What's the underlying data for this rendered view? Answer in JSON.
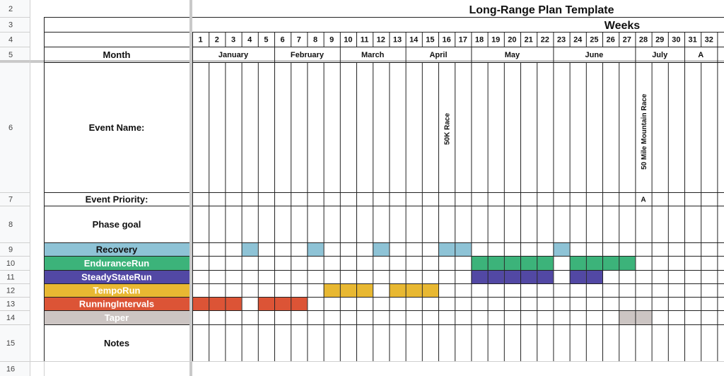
{
  "sheet": {
    "title": "Long-Range Plan Template",
    "weeks_label": "Weeks",
    "row_numbers": [
      "2",
      "3",
      "4",
      "5",
      "6",
      "7",
      "8",
      "9",
      "10",
      "11",
      "12",
      "13",
      "14",
      "15",
      "16"
    ],
    "labels": {
      "month": "Month",
      "event_name": "Event Name:",
      "event_priority": "Event Priority:",
      "phase_goal": "Phase goal",
      "notes": "Notes"
    },
    "weeks": [
      "1",
      "2",
      "3",
      "4",
      "5",
      "6",
      "7",
      "8",
      "9",
      "10",
      "11",
      "12",
      "13",
      "14",
      "15",
      "16",
      "17",
      "18",
      "19",
      "20",
      "21",
      "22",
      "23",
      "24",
      "25",
      "26",
      "27",
      "28",
      "29",
      "30",
      "31",
      "32"
    ],
    "months": [
      {
        "name": "January",
        "start_week": 1,
        "end_week": 5
      },
      {
        "name": "February",
        "start_week": 6,
        "end_week": 9
      },
      {
        "name": "March",
        "start_week": 10,
        "end_week": 13
      },
      {
        "name": "April",
        "start_week": 14,
        "end_week": 17
      },
      {
        "name": "May",
        "start_week": 18,
        "end_week": 22
      },
      {
        "name": "June",
        "start_week": 23,
        "end_week": 27
      },
      {
        "name": "July",
        "start_week": 28,
        "end_week": 30
      },
      {
        "name": "A",
        "start_week": 31,
        "end_week": 32
      }
    ],
    "events": [
      {
        "name": "50K Race",
        "week": 16
      },
      {
        "name": "50 Mile Mountain Race",
        "week": 28
      }
    ],
    "priorities": [
      {
        "value": "A",
        "week": 28
      }
    ],
    "phases": [
      {
        "name": "Recovery",
        "color": "#8ec3d6",
        "text_color": "#111111",
        "weeks": [
          4,
          8,
          12,
          16,
          17,
          23
        ]
      },
      {
        "name": "EnduranceRun",
        "color": "#3cb37a",
        "text_color": "#ffffff",
        "weeks": [
          18,
          19,
          20,
          21,
          22,
          24,
          25,
          26,
          27
        ]
      },
      {
        "name": "SteadyStateRun",
        "color": "#5248a4",
        "text_color": "#ffffff",
        "weeks": [
          18,
          19,
          20,
          21,
          22,
          24,
          25
        ]
      },
      {
        "name": "TempoRun",
        "color": "#e8b832",
        "text_color": "#ffffff",
        "weeks": [
          9,
          10,
          11,
          13,
          14,
          15
        ]
      },
      {
        "name": "RunningIntervals",
        "color": "#dc5436",
        "text_color": "#ffffff",
        "weeks": [
          1,
          2,
          3,
          5,
          6,
          7
        ]
      },
      {
        "name": "Taper",
        "color": "#ccc5c3",
        "text_color": "#ffffff",
        "weeks": [
          27,
          28
        ]
      }
    ]
  }
}
